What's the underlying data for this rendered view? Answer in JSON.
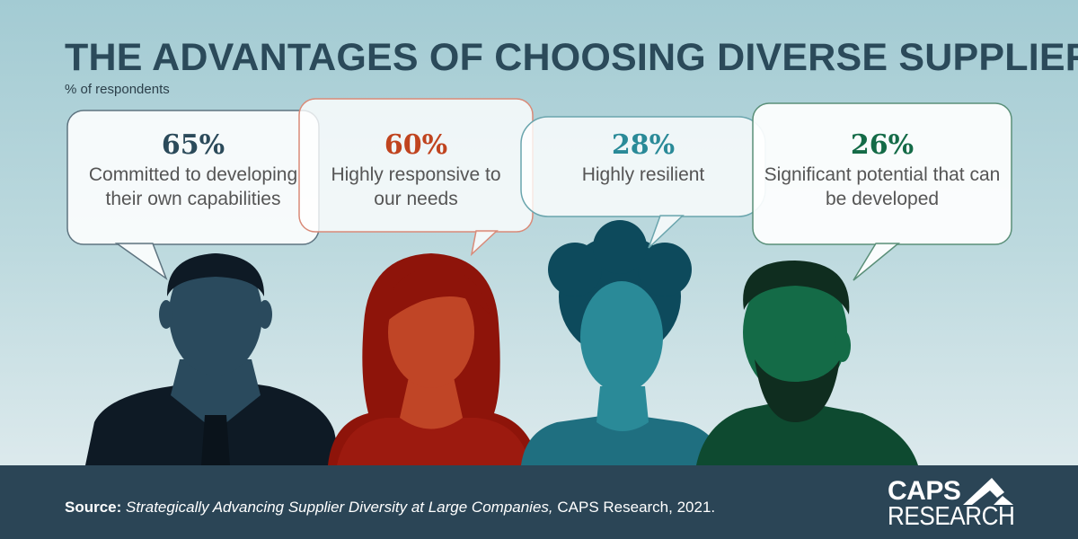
{
  "title": "THE ADVANTAGES OF CHOOSING DIVERSE SUPPLIERS",
  "subtitle": "% of respondents",
  "items": [
    {
      "percent": "65%",
      "text": "Committed to developing their own capabilities",
      "color": "#2b4a5a"
    },
    {
      "percent": "60%",
      "text": "Highly responsive to our needs",
      "color": "#c0441f"
    },
    {
      "percent": "28%",
      "text": "Highly resilient",
      "color": "#2a8a98"
    },
    {
      "percent": "26%",
      "text": "Significant potential that can be developed",
      "color": "#146b47"
    }
  ],
  "footer": {
    "source_label": "Source:",
    "source_title": "Strategically Advancing Supplier Diversity at Large Companies,",
    "source_rest": " CAPS Research, 2021."
  },
  "logo": {
    "line1": "CAPS",
    "line2": "RESEARCH"
  }
}
